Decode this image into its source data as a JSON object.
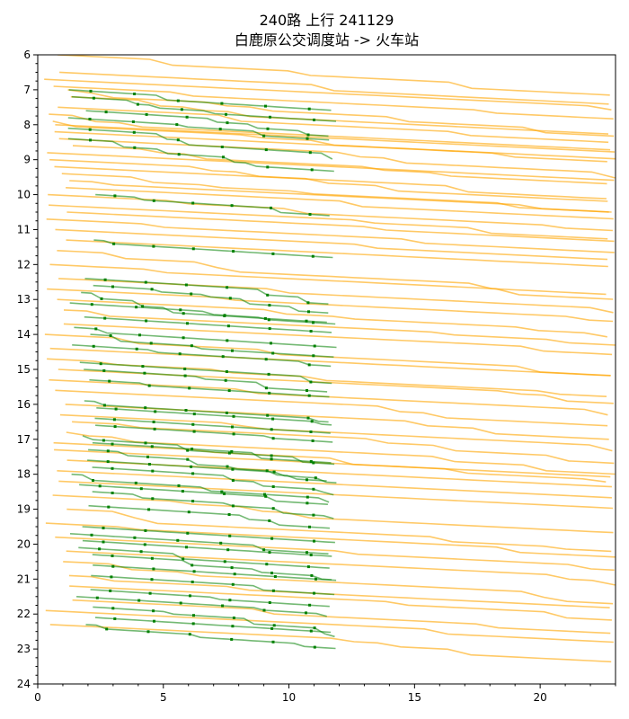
{
  "chart_data": {
    "type": "line",
    "title": "240路 上行 241129",
    "subtitle": "白鹿原公交调度站 -> 火车站",
    "xlabel": "",
    "ylabel": "",
    "xlim": [
      0,
      23
    ],
    "ylim": [
      24,
      6
    ],
    "y_inverted": true,
    "x_ticks": [
      "0",
      "5",
      "10",
      "15",
      "20"
    ],
    "y_ticks": [
      "6",
      "7",
      "8",
      "9",
      "10",
      "11",
      "12",
      "13",
      "14",
      "15",
      "16",
      "17",
      "18",
      "19",
      "20",
      "21",
      "22",
      "23",
      "24"
    ],
    "grid": false,
    "legend": "none",
    "colors": {
      "orange": "#ffa500",
      "green": "#008000"
    },
    "series": [
      {
        "color": "orange",
        "start_y": [
          6.0,
          6.5,
          6.7,
          6.9,
          7.0,
          7.2,
          7.5,
          7.7,
          7.9,
          8.0,
          8.2,
          8.4,
          8.6,
          8.8,
          9.0,
          9.2,
          9.4,
          9.6,
          9.8,
          10.0,
          10.3,
          10.5,
          10.7,
          11.0,
          11.3,
          11.6,
          12.0,
          12.4,
          12.7,
          13.0,
          13.3,
          13.7,
          14.0,
          14.4,
          14.7,
          15.0,
          15.3,
          15.6,
          16.0,
          16.3,
          16.5,
          16.8,
          17.1,
          17.3,
          17.6,
          17.9,
          18.2,
          18.6,
          19.0,
          19.4,
          19.8,
          20.2,
          20.5,
          20.9,
          21.2,
          21.6,
          21.9,
          22.3
        ],
        "x_start": 0.2,
        "x_end": 23,
        "slope_hours_per_km": 0.035
      },
      {
        "color": "green",
        "start_y": [
          7.0,
          7.2,
          7.6,
          7.8,
          8.1,
          8.4,
          10.0,
          11.3,
          12.4,
          12.6,
          12.8,
          13.1,
          13.5,
          13.8,
          14.0,
          14.3,
          14.8,
          15.0,
          15.3,
          15.9,
          16.1,
          16.4,
          16.6,
          16.9,
          17.1,
          17.3,
          17.6,
          17.8,
          18.0,
          18.3,
          18.5,
          18.9,
          19.5,
          19.7,
          19.9,
          20.1,
          20.3,
          20.6,
          20.9,
          21.3,
          21.5,
          21.8,
          22.1,
          22.3
        ],
        "x_start": 1.2,
        "x_end": 11.9,
        "slope_hours_per_km": 0.045
      }
    ]
  }
}
